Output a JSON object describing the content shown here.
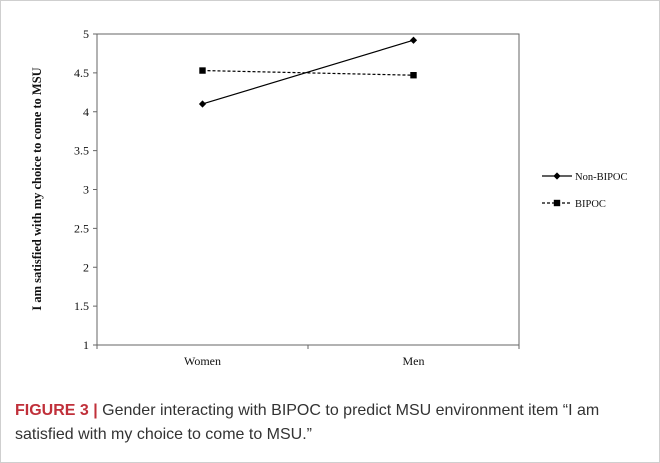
{
  "chart_data": {
    "type": "line",
    "title": "",
    "xlabel": "",
    "ylabel": "I am satisfied with my choice to come to MSU",
    "categories": [
      "Women",
      "Men"
    ],
    "ylim": [
      1,
      5
    ],
    "yticks": [
      "1",
      "1.5",
      "2",
      "2.5",
      "3",
      "3.5",
      "4",
      "4.5",
      "5"
    ],
    "series": [
      {
        "name": "Non-BIPOC",
        "values": [
          4.1,
          4.92
        ],
        "line": "solid",
        "marker": "diamond",
        "color": "#000000"
      },
      {
        "name": "BIPOC",
        "values": [
          4.53,
          4.47
        ],
        "line": "dashed",
        "marker": "square",
        "color": "#000000"
      }
    ],
    "grid": false,
    "legend_position": "right"
  },
  "caption": {
    "label": "FIGURE 3 |",
    "text": " Gender interacting with BIPOC to predict MSU environment item “I am satisfied with my choice to come to MSU.”",
    "label_color": "#c0303a"
  }
}
